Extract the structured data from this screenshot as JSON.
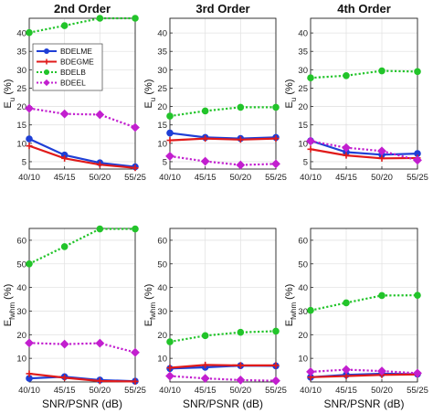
{
  "chart_data": [
    {
      "type": "line",
      "panel": "top-left",
      "title": "2nd Order",
      "ylabel_main": "E",
      "ylabel_sub": "u",
      "ylabel_unit": "(%)",
      "xlabel": "",
      "categories": [
        "40/10",
        "45/15",
        "50/20",
        "55/25"
      ],
      "ylim": [
        3,
        44
      ],
      "yticks": [
        5,
        10,
        15,
        20,
        25,
        30,
        35,
        40
      ],
      "grid": true,
      "legend": "top-left",
      "series": [
        {
          "name": "BDELME",
          "values": [
            11.2,
            6.8,
            4.7,
            3.6
          ]
        },
        {
          "name": "BDEGME",
          "values": [
            9.3,
            5.9,
            4.2,
            3.3
          ]
        },
        {
          "name": "BDELB",
          "values": [
            40.1,
            42.0,
            44.0,
            44.0
          ]
        },
        {
          "name": "BDEEL",
          "values": [
            19.5,
            18.0,
            17.8,
            14.3
          ]
        }
      ]
    },
    {
      "type": "line",
      "panel": "top-middle",
      "title": "3rd Order",
      "ylabel_main": "E",
      "ylabel_sub": "u",
      "ylabel_unit": "(%)",
      "xlabel": "",
      "categories": [
        "40/10",
        "45/15",
        "50/20",
        "55/25"
      ],
      "ylim": [
        3,
        44
      ],
      "yticks": [
        5,
        10,
        15,
        20,
        25,
        30,
        35,
        40
      ],
      "grid": true,
      "series": [
        {
          "name": "BDELME",
          "values": [
            12.8,
            11.6,
            11.3,
            11.6
          ]
        },
        {
          "name": "BDEGME",
          "values": [
            10.8,
            11.3,
            11.0,
            11.3
          ]
        },
        {
          "name": "BDELB",
          "values": [
            17.4,
            18.8,
            19.8,
            19.8
          ]
        },
        {
          "name": "BDEEL",
          "values": [
            6.5,
            5.1,
            4.1,
            4.4
          ]
        }
      ]
    },
    {
      "type": "line",
      "panel": "top-right",
      "title": "4th Order",
      "ylabel_main": "E",
      "ylabel_sub": "u",
      "ylabel_unit": "(%)",
      "xlabel": "",
      "categories": [
        "40/10",
        "45/15",
        "50/20",
        "55/25"
      ],
      "ylim": [
        3,
        44
      ],
      "yticks": [
        5,
        10,
        15,
        20,
        25,
        30,
        35,
        40
      ],
      "grid": true,
      "series": [
        {
          "name": "BDELME",
          "values": [
            10.7,
            7.6,
            6.9,
            7.2
          ]
        },
        {
          "name": "BDEGME",
          "values": [
            8.4,
            6.7,
            5.9,
            6.0
          ]
        },
        {
          "name": "BDELB",
          "values": [
            27.8,
            28.4,
            29.7,
            29.5
          ]
        },
        {
          "name": "BDEEL",
          "values": [
            10.6,
            8.8,
            7.9,
            5.4
          ]
        }
      ]
    },
    {
      "type": "line",
      "panel": "bottom-left",
      "title": "",
      "ylabel_main": "E",
      "ylabel_sub": "fwhm",
      "ylabel_unit": "(%)",
      "xlabel": "SNR/PSNR (dB)",
      "categories": [
        "40/10",
        "45/15",
        "50/20",
        "55/25"
      ],
      "ylim": [
        0,
        65
      ],
      "yticks": [
        10,
        20,
        30,
        40,
        50,
        60
      ],
      "grid": true,
      "series": [
        {
          "name": "BDELME",
          "values": [
            1.5,
            2.2,
            0.8,
            0.3
          ]
        },
        {
          "name": "BDEGME",
          "values": [
            3.5,
            1.8,
            0.4,
            0.2
          ]
        },
        {
          "name": "BDELB",
          "values": [
            50.0,
            57.3,
            64.8,
            64.8
          ]
        },
        {
          "name": "BDEEL",
          "values": [
            16.5,
            16.0,
            16.4,
            12.5
          ]
        }
      ]
    },
    {
      "type": "line",
      "panel": "bottom-middle",
      "title": "",
      "ylabel_main": "E",
      "ylabel_sub": "fwhm",
      "ylabel_unit": "(%)",
      "xlabel": "SNR/PSNR (dB)",
      "categories": [
        "40/10",
        "45/15",
        "50/20",
        "55/25"
      ],
      "ylim": [
        0,
        65
      ],
      "yticks": [
        10,
        20,
        30,
        40,
        50,
        60
      ],
      "grid": true,
      "series": [
        {
          "name": "BDELME",
          "values": [
            5.7,
            6.2,
            6.9,
            6.8
          ]
        },
        {
          "name": "BDEGME",
          "values": [
            6.0,
            7.2,
            7.0,
            7.0
          ]
        },
        {
          "name": "BDELB",
          "values": [
            17.0,
            19.6,
            21.0,
            21.5
          ]
        },
        {
          "name": "BDEEL",
          "values": [
            2.5,
            1.5,
            0.8,
            0.5
          ]
        }
      ]
    },
    {
      "type": "line",
      "panel": "bottom-right",
      "title": "",
      "ylabel_main": "E",
      "ylabel_sub": "fwhm",
      "ylabel_unit": "(%)",
      "xlabel": "SNR/PSNR (dB)",
      "categories": [
        "40/10",
        "45/15",
        "50/20",
        "55/25"
      ],
      "ylim": [
        0,
        65
      ],
      "yticks": [
        10,
        20,
        30,
        40,
        50,
        60
      ],
      "grid": true,
      "series": [
        {
          "name": "BDELME",
          "values": [
            2.0,
            3.0,
            3.5,
            3.3
          ]
        },
        {
          "name": "BDEGME",
          "values": [
            2.0,
            2.5,
            3.0,
            3.2
          ]
        },
        {
          "name": "BDELB",
          "values": [
            30.3,
            33.5,
            36.6,
            36.7
          ]
        },
        {
          "name": "BDEEL",
          "values": [
            4.3,
            5.2,
            4.6,
            3.7
          ]
        }
      ]
    }
  ],
  "series_style": {
    "BDELME": {
      "color": "#1f3fd6",
      "marker": "circle",
      "dash": "solid"
    },
    "BDEGME": {
      "color": "#e01a1a",
      "marker": "plus",
      "dash": "solid"
    },
    "BDELB": {
      "color": "#22c42a",
      "marker": "circle",
      "dash": "dotted"
    },
    "BDEEL": {
      "color": "#c21fcf",
      "marker": "diamond",
      "dash": "dotted"
    }
  }
}
